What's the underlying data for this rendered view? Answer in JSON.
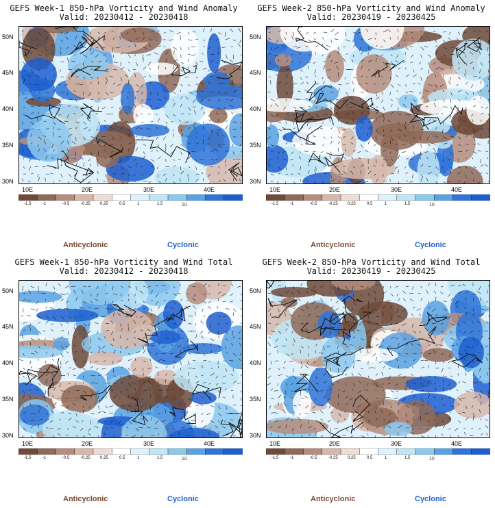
{
  "colors": {
    "scale": [
      "#6e4a3a",
      "#8f6a58",
      "#b68d7c",
      "#d6b8ab",
      "#eeddd6",
      "#ffffff",
      "#dff1fb",
      "#bfe5f6",
      "#8cc8ee",
      "#5aa2e3",
      "#2f74d8",
      "#1e5fd0"
    ],
    "anticyclonic": "#7a4a34",
    "cyclonic": "#1f5fd6"
  },
  "panels": [
    {
      "title": "GEFS Week-1 850-hPa Vorticity and Wind Anomaly",
      "valid": "Valid: 20230412 - 20230418"
    },
    {
      "title": "GEFS Week-2 850-hPa Vorticity and Wind Anomaly",
      "valid": "Valid: 20230419 - 20230425"
    },
    {
      "title": "GEFS Week-1 850-hPa Vorticity and Wind Total",
      "valid": "Valid: 20230412 - 20230418"
    },
    {
      "title": "GEFS Week-2 850-hPa Vorticity and Wind Total",
      "valid": "Valid: 20230419 - 20230425"
    }
  ],
  "axes": {
    "lat_ticks": [
      "50N",
      "45N",
      "40N",
      "35N",
      "30N"
    ],
    "lon_ticks": [
      "10E",
      "20E",
      "30E",
      "40E"
    ]
  },
  "colorbar": {
    "ticks": [
      "-1.5",
      "-1",
      "-0.5",
      "-0.25",
      "0.25",
      "0.5",
      "1",
      "1.5"
    ],
    "unit": "10"
  },
  "labels": {
    "anticyclonic": "Anticyclonic",
    "cyclonic": "Cyclonic"
  }
}
